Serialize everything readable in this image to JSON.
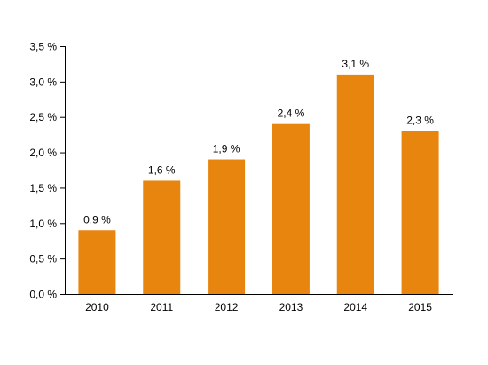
{
  "chart_data": {
    "type": "bar",
    "categories": [
      "2010",
      "2011",
      "2012",
      "2013",
      "2014",
      "2015"
    ],
    "values": [
      0.9,
      1.6,
      1.9,
      2.4,
      3.1,
      2.3
    ],
    "data_labels": [
      "0,9 %",
      "1,6 %",
      "1,9 %",
      "2,4 %",
      "3,1 %",
      "2,3 %"
    ],
    "yticks": [
      0,
      0.5,
      1.0,
      1.5,
      2.0,
      2.5,
      3.0,
      3.5
    ],
    "ytick_labels": [
      "0,0 %",
      "0,5 %",
      "1,0 %",
      "1,5 %",
      "2,0 %",
      "2,5 %",
      "3,0 %",
      "3,5 %"
    ],
    "ylim": [
      0,
      3.5
    ],
    "grid": false,
    "bar_color": "#E8850E"
  }
}
